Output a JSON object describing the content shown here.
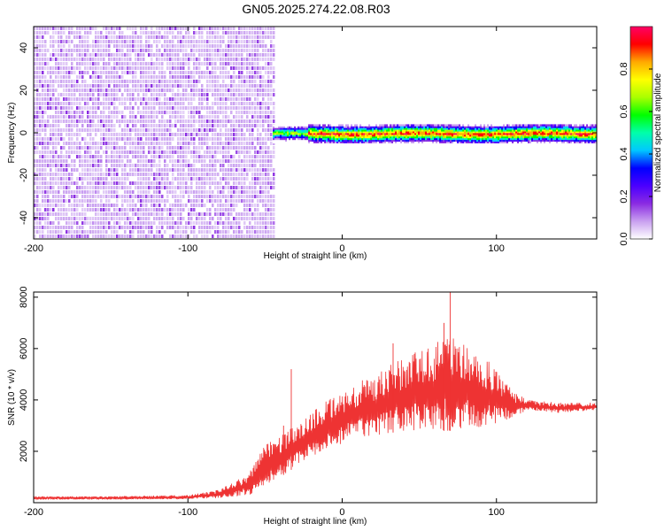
{
  "title": "GN05.2025.274.22.08.R03",
  "chart_data": [
    {
      "type": "heatmap",
      "xlabel": "Height of straight line (km)",
      "ylabel": "Frequency (Hz)",
      "xlim": [
        -200,
        165
      ],
      "ylim": [
        -50,
        50
      ],
      "xticks": [
        -200,
        -100,
        0,
        100
      ],
      "yticks": [
        -40,
        -20,
        0,
        20,
        40
      ],
      "colorbar": {
        "label": "Normalized spectral amplitude",
        "range": [
          0,
          1
        ],
        "ticks": [
          "0.0",
          "0.2",
          "0.4",
          "0.6",
          "0.8"
        ],
        "tick_values": [
          0,
          0.2,
          0.4,
          0.6,
          0.8
        ],
        "colors": [
          "#ffffff",
          "#c9a0f0",
          "#8a2be2",
          "#4b00ff",
          "#0000ff",
          "#00c8ff",
          "#00ffaa",
          "#00ff00",
          "#aaff00",
          "#ffff00",
          "#ffaa00",
          "#ff0000",
          "#ff0066"
        ]
      },
      "features": [
        {
          "name": "broadband noise",
          "x_range": [
            -200,
            -45
          ],
          "freq_range": [
            -50,
            50
          ]
        },
        {
          "name": "narrow band",
          "x_range": [
            -45,
            165
          ],
          "center_freq": 0,
          "half_width_hz": 4
        }
      ]
    },
    {
      "type": "line",
      "xlabel": "Height of straight line (km)",
      "ylabel": "SNR (10 * v/v)",
      "xlim": [
        -200,
        165
      ],
      "ylim": [
        0,
        8200
      ],
      "xticks": [
        -200,
        -100,
        0,
        100
      ],
      "yticks": [
        2000,
        4000,
        6000,
        8000
      ],
      "color": "#ee3333",
      "series": [
        {
          "name": "SNR",
          "x": [
            -200,
            -150,
            -100,
            -80,
            -60,
            -50,
            -40,
            -30,
            -20,
            -10,
            0,
            10,
            20,
            30,
            40,
            50,
            60,
            70,
            80,
            90,
            100,
            110,
            120,
            140,
            165
          ],
          "envelope_low": [
            120,
            120,
            140,
            180,
            300,
            700,
            1000,
            1400,
            1800,
            2100,
            2300,
            2500,
            2600,
            2700,
            2800,
            2800,
            2800,
            2800,
            2900,
            2900,
            3000,
            3300,
            3600,
            3500,
            3600
          ],
          "envelope_high": [
            250,
            250,
            300,
            500,
            1200,
            2300,
            2700,
            3000,
            3500,
            4000,
            4300,
            4700,
            5000,
            5400,
            5700,
            6000,
            6300,
            6500,
            6300,
            5800,
            5200,
            4400,
            4000,
            3900,
            3900
          ]
        }
      ],
      "spikes": [
        {
          "x": 70,
          "y": 8200
        },
        {
          "x": 33,
          "y": 6200
        },
        {
          "x": -33,
          "y": 5200
        },
        {
          "x": -38,
          "y": 3000
        },
        {
          "x": 66,
          "y": 7000
        }
      ]
    }
  ]
}
